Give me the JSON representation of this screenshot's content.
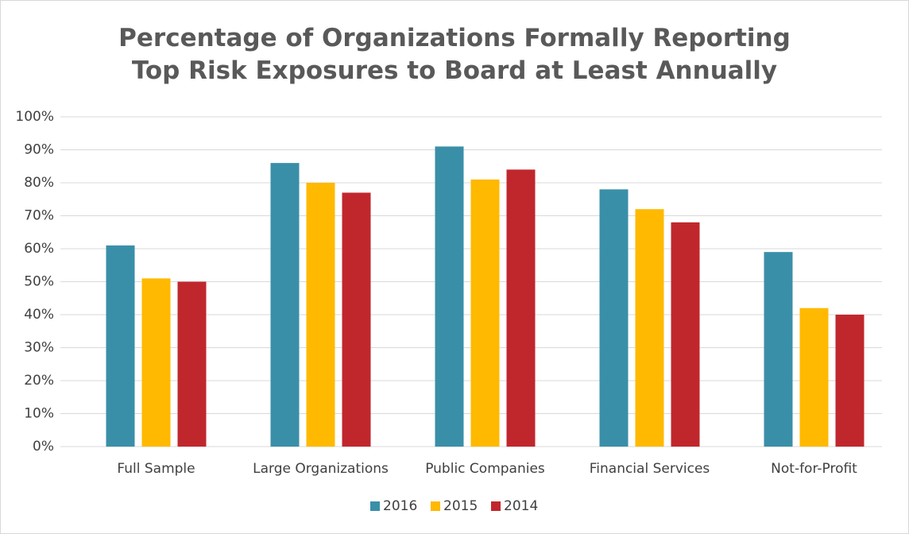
{
  "chart_data": {
    "type": "bar",
    "title": "Percentage of Organizations Formally Reporting\nTop Risk Exposures to Board at Least Annually",
    "categories": [
      "Full Sample",
      "Large Organizations",
      "Public Companies",
      "Financial Services",
      "Not-for-Profit"
    ],
    "series": [
      {
        "name": "2016",
        "color": "#3a8fa8",
        "values": [
          61,
          86,
          91,
          78,
          59
        ]
      },
      {
        "name": "2015",
        "color": "#ffb900",
        "values": [
          51,
          80,
          81,
          72,
          42
        ]
      },
      {
        "name": "2014",
        "color": "#c0272d",
        "values": [
          50,
          77,
          84,
          68,
          40
        ]
      }
    ],
    "ylim": [
      0,
      100
    ],
    "yticks": [
      {
        "value": 0,
        "label": "0%"
      },
      {
        "value": 10,
        "label": "10%"
      },
      {
        "value": 20,
        "label": "20%"
      },
      {
        "value": 30,
        "label": "30%"
      },
      {
        "value": 40,
        "label": "40%"
      },
      {
        "value": 50,
        "label": "50%"
      },
      {
        "value": 60,
        "label": "60%"
      },
      {
        "value": 70,
        "label": "70%"
      },
      {
        "value": 80,
        "label": "80%"
      },
      {
        "value": 90,
        "label": "90%"
      },
      {
        "value": 100,
        "label": "100%"
      }
    ],
    "grid": true,
    "legend": "bottom"
  }
}
